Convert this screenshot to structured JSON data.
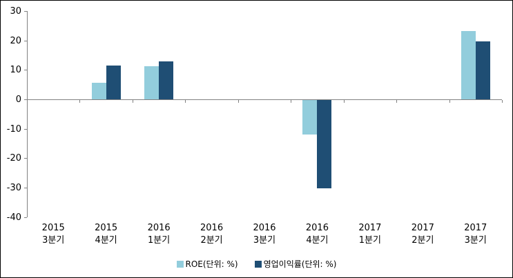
{
  "chart_data": {
    "type": "bar",
    "title": "",
    "categories": [
      {
        "line1": "2015",
        "line2": "3분기"
      },
      {
        "line1": "2015",
        "line2": "4분기"
      },
      {
        "line1": "2016",
        "line2": "1분기"
      },
      {
        "line1": "2016",
        "line2": "2분기"
      },
      {
        "line1": "2016",
        "line2": "3분기"
      },
      {
        "line1": "2016",
        "line2": "4분기"
      },
      {
        "line1": "2017",
        "line2": "1분기"
      },
      {
        "line1": "2017",
        "line2": "2분기"
      },
      {
        "line1": "2017",
        "line2": "3분기"
      }
    ],
    "series": [
      {
        "name": "ROE(단위: %)",
        "color": "#92CDDC",
        "values": [
          0,
          5.6,
          11.3,
          0,
          0,
          -11.7,
          0,
          0,
          23.3
        ]
      },
      {
        "name": "영업이익률(단위: %)",
        "color": "#1F4E74",
        "values": [
          0,
          11.6,
          12.9,
          0,
          0,
          -30,
          0,
          0,
          19.6
        ]
      }
    ],
    "ylim": [
      -40,
      30
    ],
    "yticks": [
      30,
      20,
      10,
      0,
      -10,
      -20,
      -30,
      -40
    ],
    "grid": false,
    "legend_position": "bottom",
    "axis_color": "#808080",
    "text_color": "#000000",
    "background_color": "#FFFFFF",
    "border_color": "#000000"
  }
}
